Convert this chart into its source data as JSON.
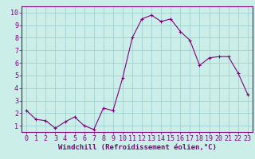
{
  "x": [
    0,
    1,
    2,
    3,
    4,
    5,
    6,
    7,
    8,
    9,
    10,
    11,
    12,
    13,
    14,
    15,
    16,
    17,
    18,
    19,
    20,
    21,
    22,
    23
  ],
  "y": [
    2.2,
    1.5,
    1.4,
    0.8,
    1.3,
    1.7,
    1.0,
    0.7,
    2.4,
    2.2,
    4.8,
    8.0,
    9.5,
    9.8,
    9.3,
    9.5,
    8.5,
    7.8,
    5.8,
    6.4,
    6.5,
    6.5,
    5.2,
    3.5
  ],
  "line_color": "#800080",
  "marker": "+",
  "marker_size": 3,
  "bg_color": "#cceee8",
  "grid_color": "#99cccc",
  "xlabel": "Windchill (Refroidissement éolien,°C)",
  "xlabel_fontsize": 6.5,
  "ylabel_ticks": [
    1,
    2,
    3,
    4,
    5,
    6,
    7,
    8,
    9,
    10
  ],
  "xlim": [
    -0.5,
    23.5
  ],
  "ylim": [
    0.5,
    10.5
  ],
  "tick_fontsize": 6,
  "line_width": 0.8,
  "spine_color": "#800080"
}
